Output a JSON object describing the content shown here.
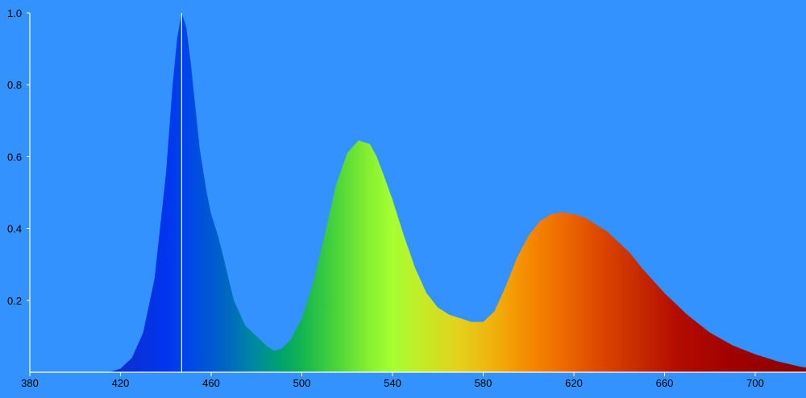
{
  "colors": {
    "background": "#3392fd",
    "axis": "#ffffff",
    "text": "#000000",
    "marker": "#ffffff"
  },
  "chart_data": {
    "type": "area",
    "title": "",
    "xlabel": "",
    "ylabel": "",
    "xlim": [
      380,
      725
    ],
    "ylim": [
      0,
      1.0
    ],
    "grid": false,
    "legend": "none",
    "fill": "spectral wavelength colours",
    "x_ticks": [
      "380",
      "420",
      "460",
      "500",
      "540",
      "580",
      "620",
      "660",
      "700"
    ],
    "y_ticks": [
      "0.2",
      "0.4",
      "0.6",
      "0.8",
      "1.0"
    ],
    "y_tick_values": [
      0.2,
      0.4,
      0.6,
      0.8,
      1.0
    ],
    "x_tick_values": [
      380,
      420,
      460,
      500,
      540,
      580,
      620,
      660,
      700
    ],
    "marker_line_x": 447,
    "series": [
      {
        "x": [
          415,
          420,
          425,
          430,
          435,
          440,
          443,
          445,
          447,
          449,
          451,
          453,
          455,
          458,
          460,
          463,
          465,
          470,
          475,
          480,
          485,
          488,
          491,
          495,
          500,
          505,
          510,
          515,
          520,
          525,
          530,
          533,
          536,
          540,
          545,
          550,
          555,
          560,
          565,
          570,
          575,
          580,
          585,
          590,
          595,
          600,
          605,
          610,
          615,
          620,
          625,
          630,
          635,
          640,
          645,
          650,
          660,
          670,
          680,
          690,
          700,
          710,
          720,
          725
        ],
        "y": [
          0.0,
          0.01,
          0.04,
          0.11,
          0.26,
          0.55,
          0.8,
          0.93,
          1.0,
          0.96,
          0.86,
          0.74,
          0.62,
          0.5,
          0.44,
          0.38,
          0.33,
          0.2,
          0.13,
          0.1,
          0.07,
          0.06,
          0.065,
          0.09,
          0.15,
          0.25,
          0.38,
          0.52,
          0.61,
          0.645,
          0.635,
          0.6,
          0.55,
          0.48,
          0.38,
          0.29,
          0.22,
          0.18,
          0.16,
          0.15,
          0.14,
          0.14,
          0.17,
          0.24,
          0.32,
          0.38,
          0.42,
          0.44,
          0.445,
          0.44,
          0.43,
          0.41,
          0.39,
          0.36,
          0.33,
          0.29,
          0.22,
          0.16,
          0.11,
          0.075,
          0.05,
          0.03,
          0.015,
          0.01
        ]
      }
    ]
  }
}
